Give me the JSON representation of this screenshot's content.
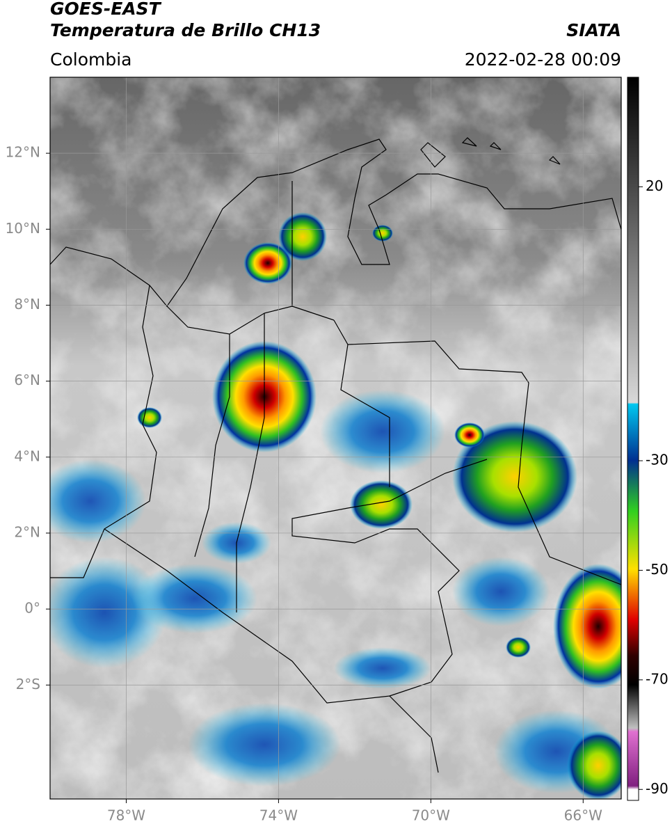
{
  "header": {
    "title": "GOES-EAST",
    "subtitle": "Temperatura de Brillo CH13",
    "region": "Colombia",
    "source": "SIATA",
    "datetime": "2022-02-28 00:09"
  },
  "map": {
    "lonlim": [
      -80,
      -65
    ],
    "latlim": [
      -5,
      14
    ],
    "lon_ticks": [
      {
        "value": -78,
        "label": "78°W"
      },
      {
        "value": -74,
        "label": "74°W"
      },
      {
        "value": -70,
        "label": "70°W"
      },
      {
        "value": -66,
        "label": "66°W"
      }
    ],
    "lat_ticks": [
      {
        "value": 12,
        "label": "12°N"
      },
      {
        "value": 10,
        "label": "10°N"
      },
      {
        "value": 8,
        "label": "8°N"
      },
      {
        "value": 6,
        "label": "6°N"
      },
      {
        "value": 4,
        "label": "4°N"
      },
      {
        "value": 2,
        "label": "2°N"
      },
      {
        "value": 0,
        "label": "0°"
      },
      {
        "value": -2,
        "label": "2°S"
      }
    ],
    "grid": true
  },
  "colorbar": {
    "lim": [
      -92,
      40
    ],
    "ticks": [
      20,
      -30,
      -50,
      -70,
      -90
    ]
  }
}
